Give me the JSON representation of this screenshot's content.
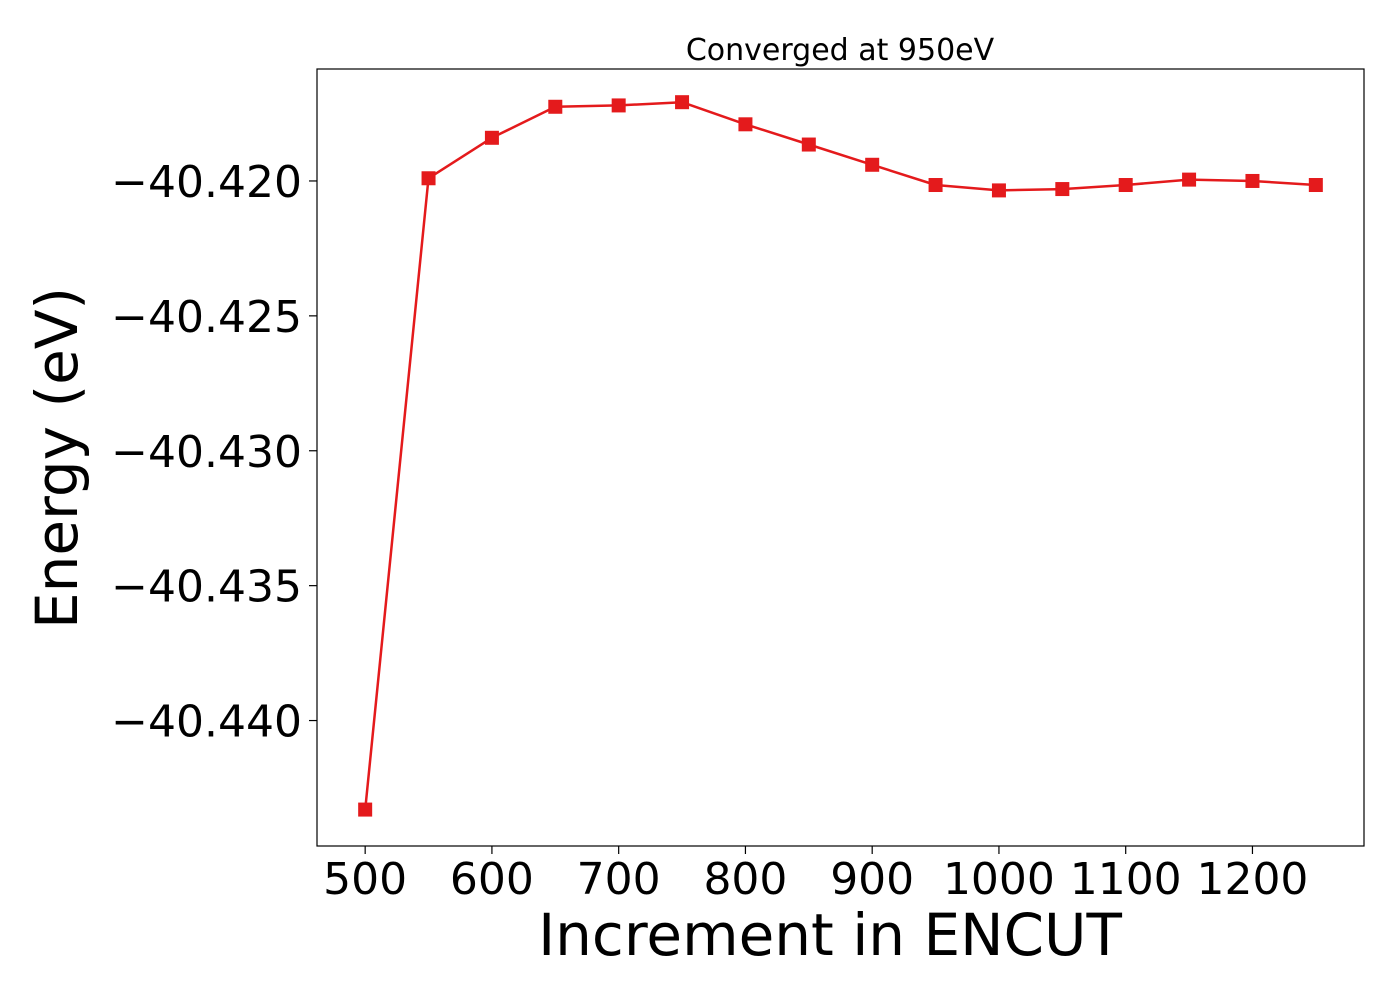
{
  "chart_data": {
    "type": "line",
    "title": "Converged at 950eV",
    "xlabel": "Increment in ENCUT",
    "ylabel": "Energy (eV)",
    "x": [
      500,
      550,
      600,
      650,
      700,
      750,
      800,
      850,
      900,
      950,
      1000,
      1050,
      1100,
      1150,
      1200,
      1250
    ],
    "series": [
      {
        "values": [
          -40.4433,
          -40.4199,
          -40.4184,
          -40.41725,
          -40.4172,
          -40.41708,
          -40.4179,
          -40.41865,
          -40.4194,
          -40.42015,
          -40.42035,
          -40.4203,
          -40.42015,
          -40.41995,
          -40.42,
          -40.42015
        ],
        "color": "#e41a1c",
        "marker": "square"
      }
    ],
    "xticks": [
      500,
      600,
      700,
      800,
      900,
      1000,
      1100,
      1200
    ],
    "xtick_labels": [
      "500",
      "600",
      "700",
      "800",
      "900",
      "1000",
      "1100",
      "1200"
    ],
    "yticks": [
      -40.44,
      -40.435,
      -40.43,
      -40.425,
      -40.42
    ],
    "ytick_labels": [
      "−40.440",
      "−40.435",
      "−40.430",
      "−40.425",
      "−40.420"
    ],
    "xlim": [
      462,
      1288
    ],
    "ylim": [
      -40.44465,
      -40.41585
    ],
    "grid": false,
    "legend": "none"
  }
}
